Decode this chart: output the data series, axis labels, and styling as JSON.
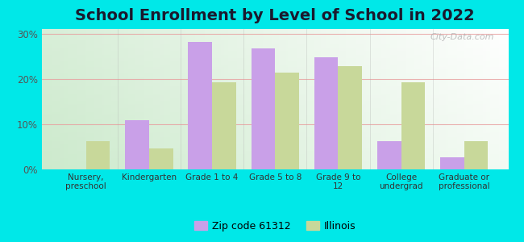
{
  "title": "School Enrollment by Level of School in 2022",
  "categories": [
    "Nursery,\npreschool",
    "Kindergarten",
    "Grade 1 to 4",
    "Grade 5 to 8",
    "Grade 9 to\n12",
    "College\nundergrad",
    "Graduate or\nprofessional"
  ],
  "zip_values": [
    0,
    10.8,
    28.2,
    26.8,
    24.7,
    6.3,
    2.7
  ],
  "il_values": [
    6.3,
    4.7,
    19.2,
    21.3,
    22.8,
    19.3,
    6.3
  ],
  "zip_color": "#c9a0e8",
  "il_color": "#c8d89a",
  "background_color": "#00e8e8",
  "ylim": [
    0,
    31
  ],
  "yticks": [
    0,
    10,
    20,
    30
  ],
  "ytick_labels": [
    "0%",
    "10%",
    "20%",
    "30%"
  ],
  "zip_label": "Zip code 61312",
  "il_label": "Illinois",
  "bar_width": 0.38,
  "title_fontsize": 14,
  "watermark": "City-Data.com"
}
